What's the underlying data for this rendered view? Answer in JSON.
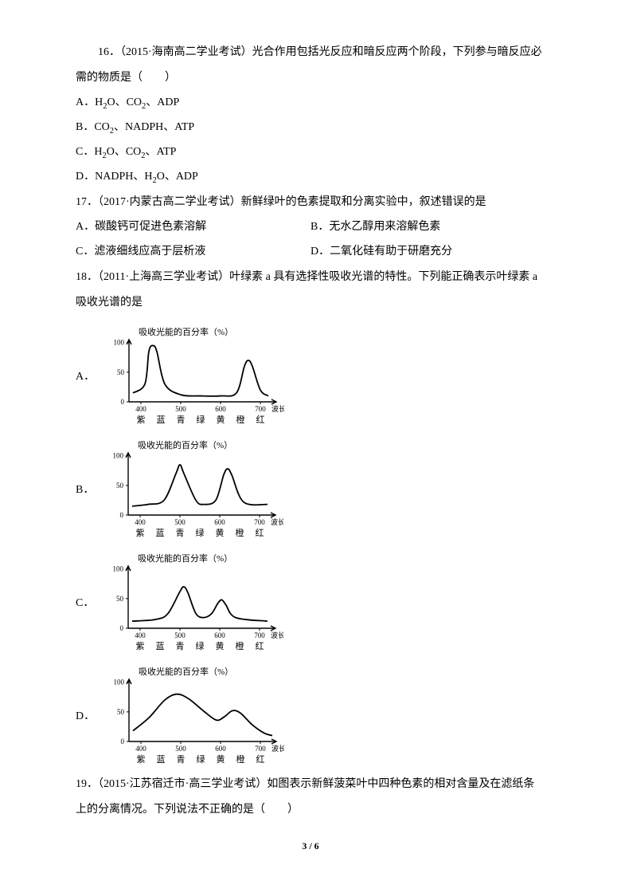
{
  "q16": {
    "stem_prefix": "16．（2015·海南高二学业考试）光合作用包括光反应和暗反应两个阶段，下列参与暗反应必需的物质是（　　）",
    "optA": "A．H₂O、CO₂、ADP",
    "optB": "B．CO₂、NADPH、ATP",
    "optC": "C．H₂O、CO₂、ATP",
    "optD": "D．NADPH、H₂O、ADP"
  },
  "q17": {
    "stem": "17．（2017·内蒙古高二学业考试）新鲜绿叶的色素提取和分离实验中，叙述错误的是",
    "optA": "A．碳酸钙可促进色素溶解",
    "optB": "B．无水乙醇用来溶解色素",
    "optC": "C．滤液细线应高于层析液",
    "optD": "D．二氧化硅有助于研磨充分"
  },
  "q18": {
    "stem": "18．（2011·上海高三学业考试）叶绿素 a 具有选择性吸收光谱的特性。下列能正确表示叶绿素 a 吸收光谱的是",
    "labels": {
      "A": "A．",
      "B": "B．",
      "C": "C．",
      "D": "D．"
    },
    "chart_common": {
      "title": "吸收光能的百分率（%）",
      "y_ticks": [
        0,
        50,
        100
      ],
      "x_ticks": [
        400,
        500,
        600,
        700
      ],
      "x_label": "波长（nm）",
      "x_cat_labels": [
        "紫",
        "蓝",
        "青",
        "绿",
        "黄",
        "橙",
        "红"
      ],
      "axis_color": "#000000",
      "line_color": "#000000",
      "background": "#ffffff"
    },
    "chartA": {
      "points": [
        [
          380,
          15
        ],
        [
          410,
          30
        ],
        [
          420,
          85
        ],
        [
          430,
          95
        ],
        [
          440,
          85
        ],
        [
          460,
          30
        ],
        [
          500,
          12
        ],
        [
          550,
          10
        ],
        [
          600,
          10
        ],
        [
          640,
          15
        ],
        [
          660,
          60
        ],
        [
          670,
          70
        ],
        [
          680,
          60
        ],
        [
          700,
          20
        ],
        [
          720,
          10
        ]
      ]
    },
    "chartB": {
      "points": [
        [
          380,
          15
        ],
        [
          420,
          18
        ],
        [
          460,
          25
        ],
        [
          490,
          70
        ],
        [
          500,
          85
        ],
        [
          510,
          70
        ],
        [
          540,
          25
        ],
        [
          560,
          18
        ],
        [
          590,
          25
        ],
        [
          610,
          68
        ],
        [
          620,
          78
        ],
        [
          630,
          68
        ],
        [
          660,
          22
        ],
        [
          720,
          18
        ]
      ]
    },
    "chartC": {
      "points": [
        [
          380,
          12
        ],
        [
          440,
          15
        ],
        [
          470,
          25
        ],
        [
          500,
          62
        ],
        [
          510,
          70
        ],
        [
          520,
          60
        ],
        [
          540,
          25
        ],
        [
          560,
          18
        ],
        [
          580,
          25
        ],
        [
          595,
          42
        ],
        [
          605,
          48
        ],
        [
          615,
          40
        ],
        [
          640,
          18
        ],
        [
          720,
          12
        ]
      ]
    },
    "chartD": {
      "points": [
        [
          380,
          18
        ],
        [
          420,
          40
        ],
        [
          460,
          70
        ],
        [
          490,
          80
        ],
        [
          520,
          72
        ],
        [
          560,
          50
        ],
        [
          590,
          36
        ],
        [
          610,
          42
        ],
        [
          630,
          52
        ],
        [
          650,
          48
        ],
        [
          680,
          28
        ],
        [
          710,
          14
        ],
        [
          730,
          10
        ]
      ]
    }
  },
  "q19": {
    "stem": "19．（2015·江苏宿迁市·高三学业考试）如图表示新鲜菠菜叶中四种色素的相对含量及在滤纸条上的分离情况。下列说法不正确的是（　　）"
  },
  "footer": {
    "page": "3",
    "sep": " / ",
    "total": "6"
  }
}
